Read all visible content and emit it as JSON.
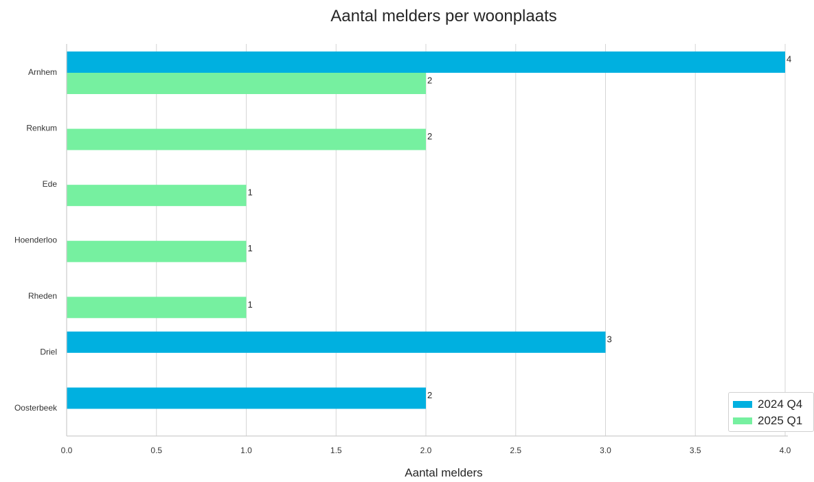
{
  "chart_data": {
    "type": "bar",
    "orientation": "horizontal",
    "title": "Aantal melders per woonplaats",
    "xlabel": "Aantal melders",
    "ylabel": "",
    "categories": [
      "Arnhem",
      "Renkum",
      "Ede",
      "Hoenderloo",
      "Rheden",
      "Driel",
      "Oosterbeek"
    ],
    "series": [
      {
        "name": "2024 Q4",
        "color": "#00b0e0",
        "values": [
          4,
          null,
          null,
          null,
          null,
          3,
          2
        ]
      },
      {
        "name": "2025 Q1",
        "color": "#76f0a0",
        "values": [
          2,
          2,
          1,
          1,
          1,
          null,
          null
        ]
      }
    ],
    "xlim": [
      0,
      4.0
    ],
    "xticks": [
      "0.0",
      "0.5",
      "1.0",
      "1.5",
      "2.0",
      "2.5",
      "3.0",
      "3.5",
      "4.0"
    ],
    "grid": "vertical",
    "legend_position": "bottom-right"
  }
}
